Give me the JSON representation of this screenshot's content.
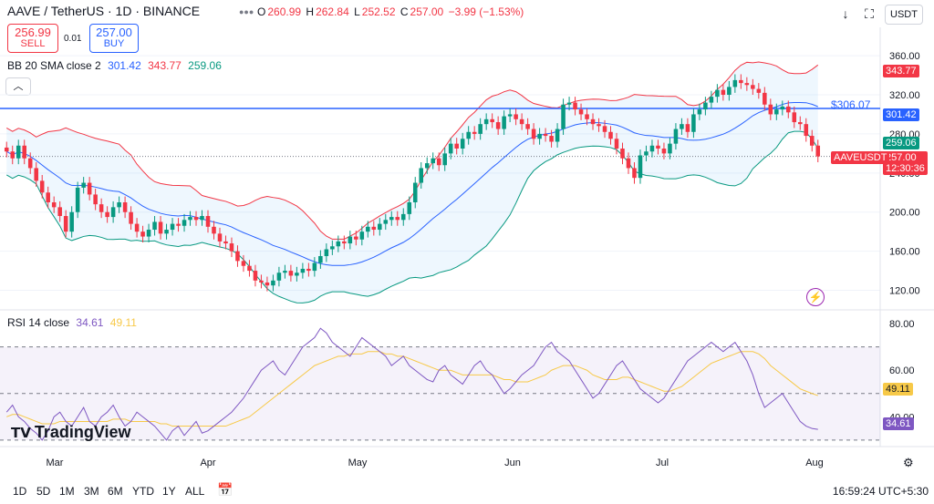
{
  "header": {
    "symbol_line": "AAVE / TetherUS · 1D · BINANCE",
    "ohlc": {
      "o": "O",
      "open": "260.99",
      "h": "H",
      "high": "262.84",
      "l": "L",
      "low": "252.52",
      "c": "C",
      "close": "257.00",
      "change": "−3.99 (−1.53%)"
    }
  },
  "trade": {
    "sell_price": "256.99",
    "sell_label": "SELL",
    "spread": "0.01",
    "buy_price": "257.00",
    "buy_label": "BUY"
  },
  "bb_legend": {
    "name": "BB 20 SMA close 2",
    "basis": "301.42",
    "upper": "343.77",
    "lower": "259.06"
  },
  "rsi_legend": {
    "name": "RSI 14 close",
    "rsi": "34.61",
    "ma": "49.11"
  },
  "toolbar": {
    "currency": "USDT"
  },
  "price_labels": {
    "line_value": "$306.07",
    "upper": "343.77",
    "basis": "301.42",
    "lower": "259.06",
    "symbol": "AAVEUSDT",
    "last": "257.00",
    "countdown": "12:30:36"
  },
  "rsi_labels": {
    "ma": "49.11",
    "rsi": "34.61"
  },
  "timeframes": [
    "1D",
    "5D",
    "1M",
    "3M",
    "6M",
    "YTD",
    "1Y",
    "ALL"
  ],
  "footer": {
    "logo": "TradingView",
    "clock": "16:59:24 UTC+5:30"
  },
  "colors": {
    "up": "#089981",
    "down": "#f23645",
    "upper_band": "#f23645",
    "basis": "#2962ff",
    "lower_band": "#089981",
    "rsi": "#7e57c2",
    "rsi_ma": "#f7c948"
  },
  "chart_data": [
    {
      "type": "candlestick",
      "title": "AAVE / TetherUS 1D",
      "x_labels": [
        "Mar",
        "Apr",
        "May",
        "Jun",
        "Jul",
        "Aug"
      ],
      "y_ticks": [
        120,
        160,
        200,
        240,
        280,
        320,
        360
      ],
      "y_tick_labels": [
        "120.00",
        "160.00",
        "200.00",
        "240.00",
        "280.00",
        "320.00",
        "360.00"
      ],
      "ylim": [
        100,
        375
      ],
      "close": [
        262,
        255,
        268,
        255,
        245,
        232,
        220,
        210,
        205,
        196,
        180,
        200,
        225,
        230,
        218,
        208,
        200,
        195,
        205,
        210,
        200,
        188,
        180,
        175,
        182,
        190,
        178,
        182,
        188,
        186,
        192,
        195,
        192,
        196,
        185,
        178,
        170,
        168,
        160,
        150,
        145,
        140,
        130,
        128,
        125,
        130,
        138,
        140,
        135,
        138,
        142,
        140,
        148,
        155,
        162,
        165,
        170,
        168,
        175,
        172,
        180,
        185,
        182,
        188,
        192,
        195,
        192,
        198,
        210,
        230,
        245,
        250,
        255,
        248,
        260,
        270,
        265,
        275,
        282,
        280,
        290,
        295,
        292,
        285,
        298,
        300,
        295,
        290,
        285,
        275,
        280,
        278,
        272,
        285,
        310,
        312,
        305,
        300,
        295,
        290,
        288,
        282,
        275,
        265,
        255,
        245,
        235,
        258,
        262,
        268,
        265,
        260,
        270,
        285,
        290,
        282,
        300,
        305,
        312,
        318,
        325,
        320,
        328,
        335,
        332,
        330,
        326,
        322,
        310,
        300,
        305,
        308,
        302,
        292,
        290,
        278,
        268,
        257
      ],
      "bollinger": {
        "period": 20,
        "mult": 2,
        "upper_last": 343.77,
        "basis_last": 301.42,
        "lower_last": 259.06
      },
      "horizontal_line": 306.07
    },
    {
      "type": "line",
      "title": "RSI 14 close",
      "y_ticks": [
        40,
        60,
        80
      ],
      "y_tick_labels": [
        "40.00",
        "60.00",
        "80.00"
      ],
      "ylim": [
        28,
        82
      ],
      "bands": [
        30,
        50,
        70
      ],
      "series": [
        {
          "name": "RSI",
          "values": [
            42,
            45,
            40,
            38,
            35,
            33,
            30,
            34,
            40,
            42,
            38,
            36,
            40,
            44,
            38,
            36,
            40,
            42,
            45,
            40,
            36,
            38,
            42,
            40,
            38,
            36,
            33,
            30,
            34,
            36,
            32,
            35,
            38,
            33,
            34,
            36,
            38,
            40,
            42,
            45,
            48,
            52,
            56,
            60,
            62,
            64,
            60,
            58,
            62,
            66,
            70,
            72,
            74,
            78,
            76,
            72,
            70,
            68,
            66,
            70,
            74,
            72,
            70,
            68,
            66,
            62,
            64,
            66,
            62,
            60,
            58,
            56,
            55,
            60,
            62,
            58,
            56,
            54,
            58,
            62,
            64,
            60,
            58,
            54,
            50,
            52,
            55,
            58,
            60,
            62,
            66,
            70,
            72,
            68,
            66,
            64,
            60,
            56,
            52,
            48,
            50,
            54,
            58,
            62,
            64,
            60,
            56,
            52,
            50,
            48,
            46,
            48,
            52,
            56,
            60,
            64,
            66,
            68,
            70,
            72,
            70,
            68,
            70,
            72,
            68,
            64,
            58,
            50,
            44,
            46,
            48,
            50,
            46,
            42,
            38,
            36,
            35,
            34.61
          ]
        },
        {
          "name": "RSI MA",
          "values": [
            40,
            41,
            41,
            40,
            39,
            38,
            37,
            37,
            37,
            38,
            38,
            38,
            38,
            38,
            38,
            38,
            38,
            38,
            39,
            39,
            39,
            38,
            38,
            38,
            38,
            38,
            37,
            37,
            36,
            36,
            36,
            36,
            36,
            36,
            36,
            36,
            36,
            36,
            37,
            38,
            39,
            40,
            42,
            44,
            46,
            48,
            50,
            52,
            54,
            56,
            58,
            60,
            62,
            63,
            64,
            65,
            66,
            66,
            67,
            67,
            67,
            68,
            68,
            68,
            67,
            67,
            66,
            66,
            65,
            64,
            63,
            62,
            61,
            60,
            60,
            60,
            59,
            58,
            58,
            58,
            58,
            58,
            58,
            57,
            56,
            56,
            55,
            55,
            55,
            56,
            57,
            58,
            60,
            61,
            62,
            62,
            62,
            61,
            60,
            58,
            57,
            56,
            56,
            56,
            57,
            57,
            56,
            55,
            54,
            53,
            52,
            51,
            51,
            52,
            53,
            55,
            57,
            59,
            61,
            63,
            64,
            65,
            66,
            67,
            68,
            68,
            68,
            67,
            65,
            62,
            60,
            58,
            56,
            54,
            52,
            51,
            50,
            49.11
          ]
        }
      ]
    }
  ]
}
